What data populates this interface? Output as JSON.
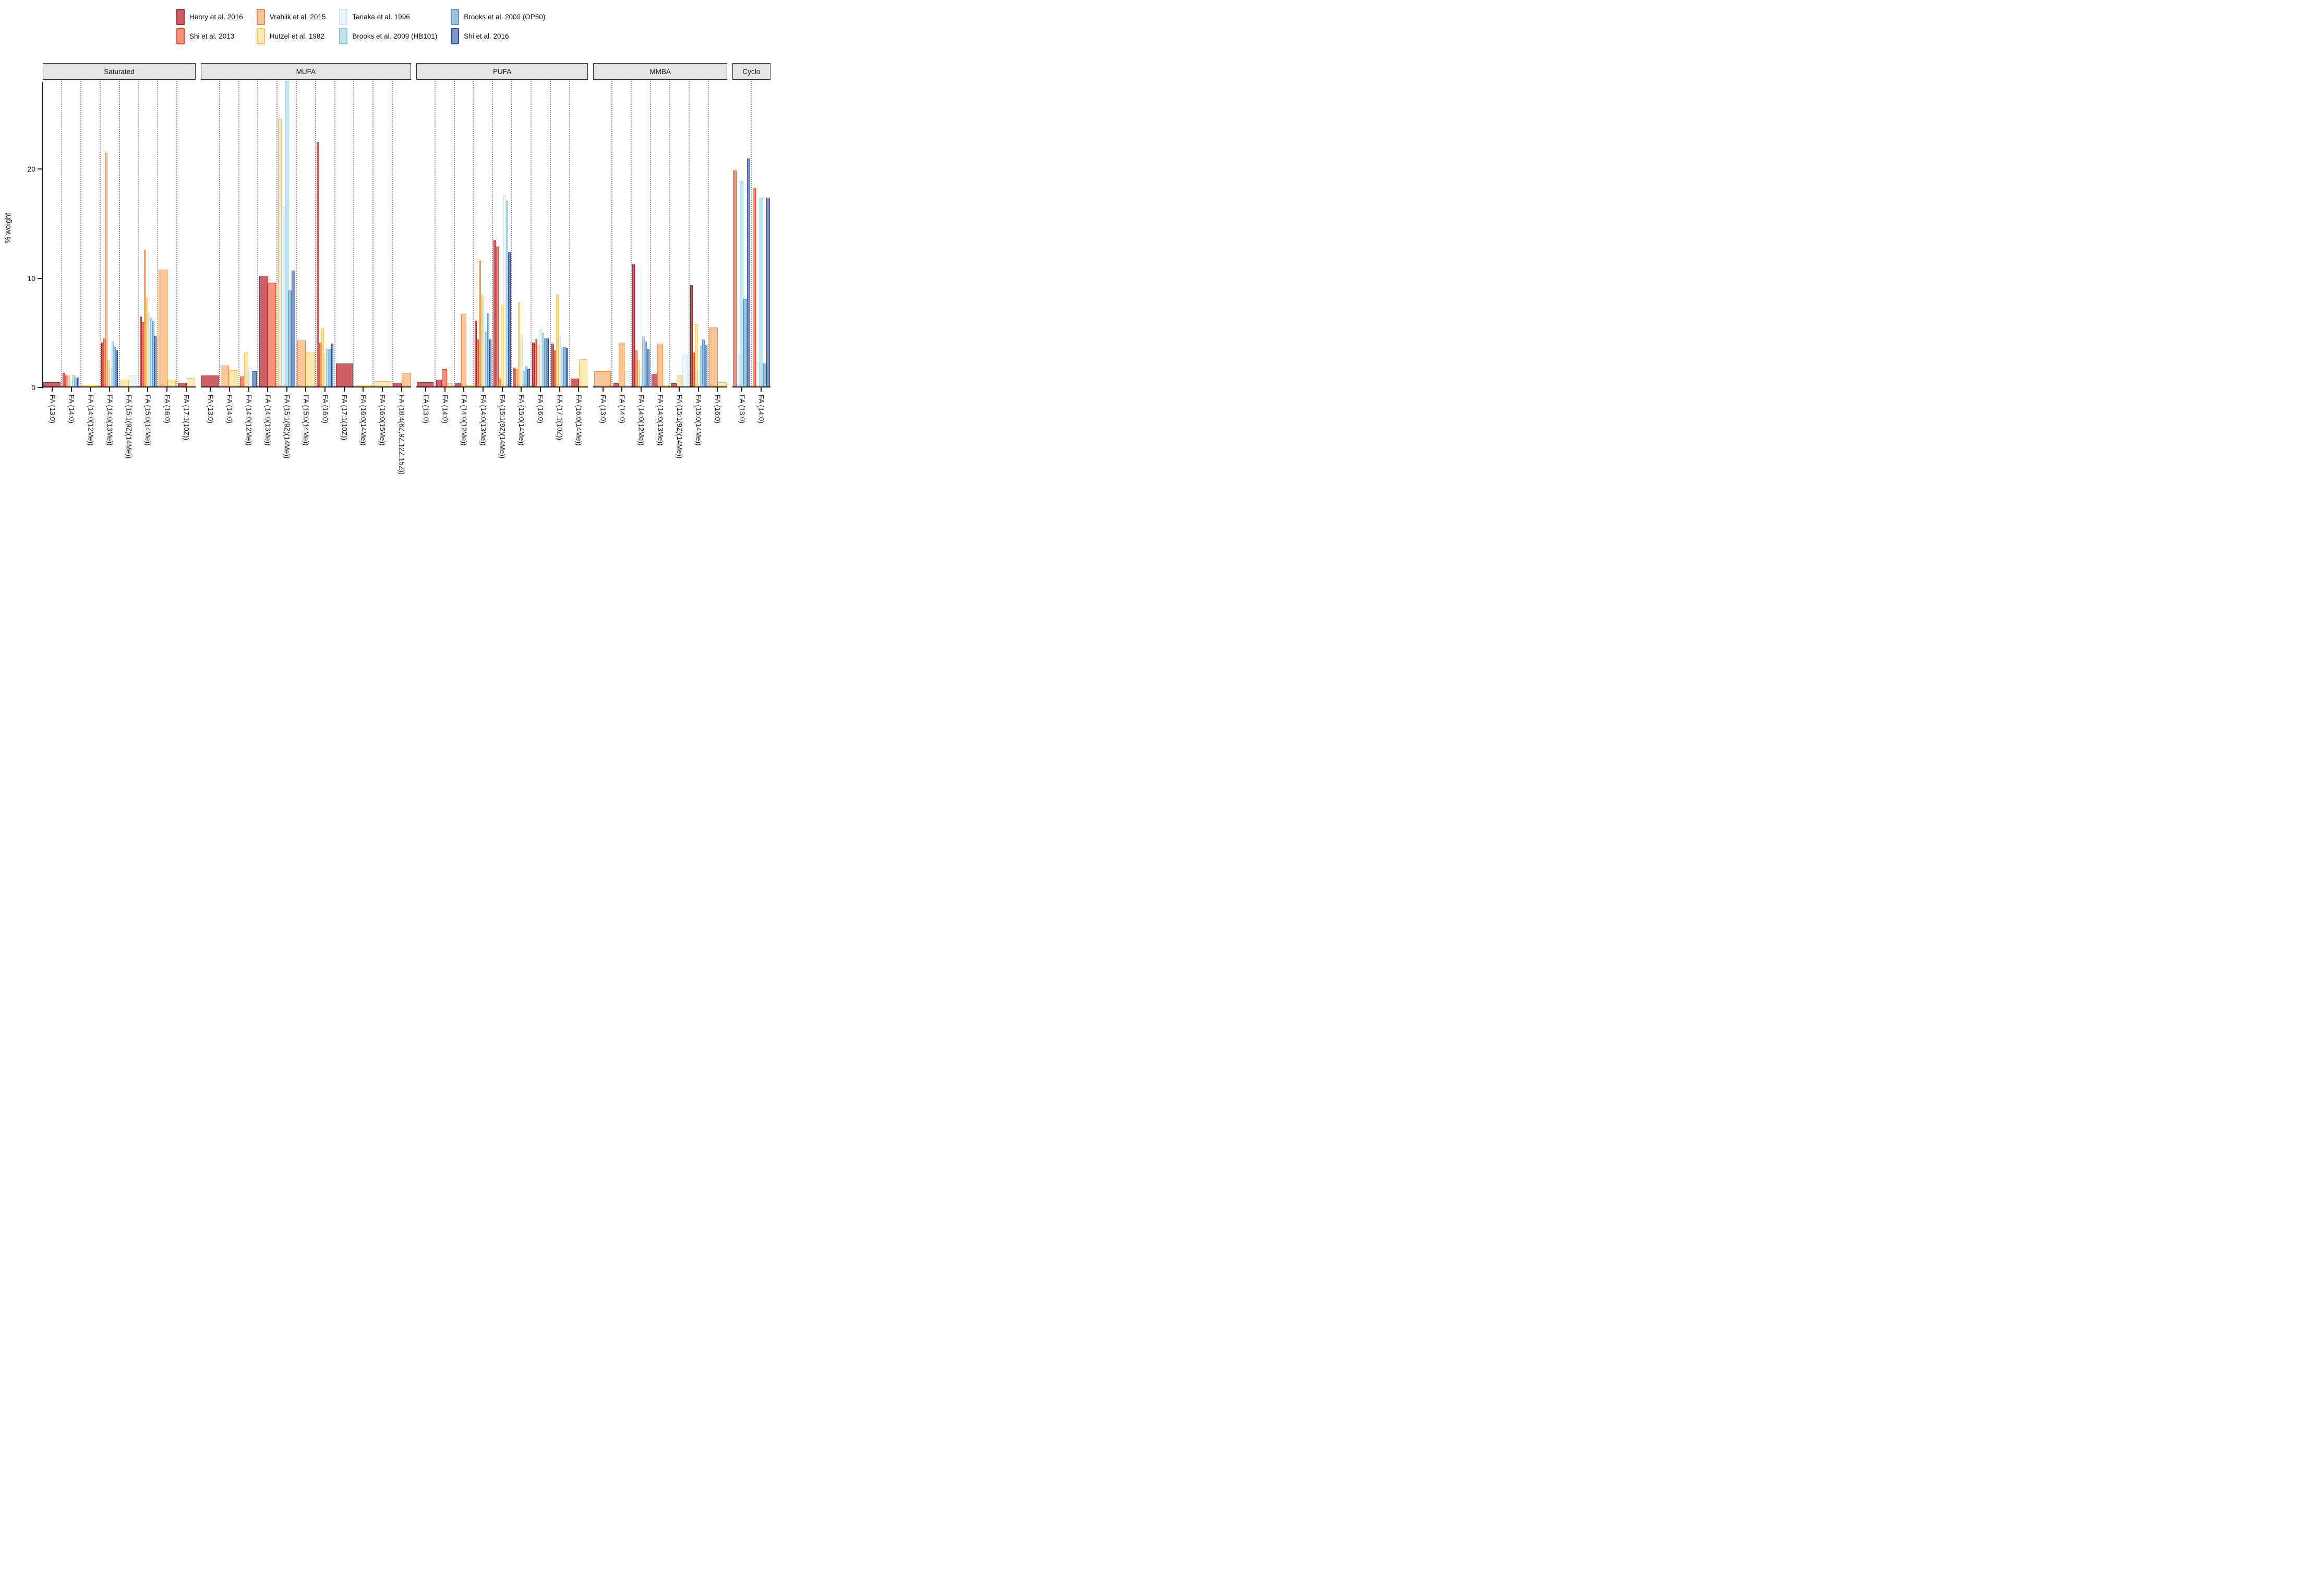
{
  "ylabel": "% weight",
  "legend": [
    {
      "name": "Henry et al. 2016",
      "fill": "#CD5F66",
      "stroke": "#B52633",
      "col": 0
    },
    {
      "name": "Shi et al. 2013",
      "fill": "#F4917B",
      "stroke": "#E94E2C",
      "col": 0
    },
    {
      "name": "Vrablik et al. 2015",
      "fill": "#FAC598",
      "stroke": "#F28A3E",
      "col": 1
    },
    {
      "name": "Hutzel et al. 1982",
      "fill": "#FCE8B0",
      "stroke": "#F5C44E",
      "col": 1
    },
    {
      "name": "Tanaka et al. 1996",
      "fill": "#EAF5FB",
      "stroke": "#CCE6F2",
      "col": 2
    },
    {
      "name": "Brooks et al. 2009 (HB101)",
      "fill": "#C3E0EF",
      "stroke": "#8FC4DC",
      "col": 2
    },
    {
      "name": "Brooks et al. 2009 (OP50)",
      "fill": "#9CC4DE",
      "stroke": "#5B9BC8",
      "col": 3
    },
    {
      "name": "Shi et al. 2016",
      "fill": "#8093C6",
      "stroke": "#2C4C9C",
      "col": 3
    }
  ],
  "chart_data": {
    "type": "bar",
    "title": "",
    "xlabel": "",
    "ylabel": "% weight",
    "ylim": [
      0,
      28
    ],
    "yticks": [
      0,
      10,
      20
    ],
    "grid": "vertical dotted lines at category boundaries",
    "legend_position": "top",
    "series_order": [
      "Henry et al. 2016",
      "Shi et al. 2013",
      "Vrablik et al. 2015",
      "Hutzel et al. 1982",
      "Tanaka et al. 1996",
      "Brooks et al. 2009 (HB101)",
      "Brooks et al. 2009 (OP50)",
      "Shi et al. 2016"
    ],
    "facets": [
      {
        "label": "Saturated",
        "categories": [
          {
            "label": "FA (13:0)",
            "values": {
              "Henry et al. 2016": 0.4
            }
          },
          {
            "label": "FA (14:0)",
            "values": {
              "Henry et al. 2016": 1.2,
              "Shi et al. 2013": 1.0,
              "Hutzel et al. 1982": 1.0,
              "Tanaka et al. 1996": 0.55,
              "Brooks et al. 2009 (HB101)": 1.05,
              "Brooks et al. 2009 (OP50)": 0.8,
              "Shi et al. 2016": 0.8
            }
          },
          {
            "label": "FA (14:0(12Me))",
            "values": {
              "Hutzel et al. 1982": 0.15
            }
          },
          {
            "label": "FA (14:0(13Me))",
            "values": {
              "Henry et al. 2016": 4.0,
              "Shi et al. 2013": 4.4,
              "Vrablik et al. 2015": 21.4,
              "Hutzel et al. 1982": 2.4,
              "Tanaka et al. 1996": 1.7,
              "Brooks et al. 2009 (HB101)": 4.1,
              "Brooks et al. 2009 (OP50)": 3.6,
              "Shi et al. 2016": 3.3
            }
          },
          {
            "label": "FA (15:1(9Z)(14Me))",
            "values": {
              "Hutzel et al. 1982": 0.6,
              "Tanaka et al. 1996": 1.05
            }
          },
          {
            "label": "FA (15:0(14Me))",
            "values": {
              "Henry et al. 2016": 6.4,
              "Shi et al. 2013": 5.9,
              "Vrablik et al. 2015": 12.5,
              "Hutzel et al. 1982": 8.1,
              "Tanaka et al. 1996": 6.9,
              "Brooks et al. 2009 (HB101)": 6.3,
              "Brooks et al. 2009 (OP50)": 6.0,
              "Shi et al. 2016": 4.6
            }
          },
          {
            "label": "FA (16:0)",
            "values": {
              "Vrablik et al. 2015": 10.7,
              "Hutzel et al. 1982": 0.6
            }
          },
          {
            "label": "FA (17:1(10Z))",
            "values": {
              "Henry et al. 2016": 0.35,
              "Hutzel et al. 1982": 0.75
            }
          }
        ]
      },
      {
        "label": "MUFA",
        "categories": [
          {
            "label": "FA (13:0)",
            "values": {
              "Henry et al. 2016": 1.0
            }
          },
          {
            "label": "FA (14:0)",
            "values": {
              "Vrablik et al. 2015": 1.9,
              "Hutzel et al. 1982": 1.5
            }
          },
          {
            "label": "FA (14:0(12Me))",
            "values": {
              "Shi et al. 2013": 0.9,
              "Hutzel et al. 1982": 3.1,
              "Tanaka et al. 1996": 1.7,
              "Shi et al. 2016": 1.4
            }
          },
          {
            "label": "FA (14:0(13Me))",
            "values": {
              "Henry et al. 2016": 10.1,
              "Shi et al. 2013": 9.5
            }
          },
          {
            "label": "FA (15:1(9Z)(14Me))",
            "values": {
              "Hutzel et al. 1982": 24.5,
              "Tanaka et al. 1996": 16.5,
              "Brooks et al. 2009 (HB101)": 28.6,
              "Brooks et al. 2009 (OP50)": 8.8,
              "Shi et al. 2016": 10.6
            }
          },
          {
            "label": "FA (15:0(14Me))",
            "values": {
              "Vrablik et al. 2015": 4.2,
              "Hutzel et al. 1982": 3.1
            }
          },
          {
            "label": "FA (16:0)",
            "values": {
              "Henry et al. 2016": 22.4,
              "Shi et al. 2013": 4.0,
              "Hutzel et al. 1982": 5.3,
              "Tanaka et al. 1996": 3.0,
              "Brooks et al. 2009 (HB101)": 3.4,
              "Brooks et al. 2009 (OP50)": 3.4,
              "Shi et al. 2016": 3.9
            }
          },
          {
            "label": "FA (17:1(10Z))",
            "values": {
              "Henry et al. 2016": 2.1
            }
          },
          {
            "label": "FA (16:0(14Me))",
            "values": {
              "Hutzel et al. 1982": 0.15
            }
          },
          {
            "label": "FA (16:0(15Me))",
            "values": {
              "Hutzel et al. 1982": 0.5
            }
          },
          {
            "label": "FA (18:4(6Z,9Z,12Z,15Z))",
            "values": {
              "Henry et al. 2016": 0.35,
              "Vrablik et al. 2015": 1.25
            }
          }
        ]
      },
      {
        "label": "PUFA",
        "categories": [
          {
            "label": "FA (13:0)",
            "values": {
              "Henry et al. 2016": 0.4
            }
          },
          {
            "label": "FA (14:0)",
            "values": {
              "Henry et al. 2016": 0.6,
              "Shi et al. 2013": 1.6,
              "Hutzel et al. 1982": 0.3
            }
          },
          {
            "label": "FA (14:0(12Me))",
            "values": {
              "Henry et al. 2016": 0.35,
              "Vrablik et al. 2015": 6.6,
              "Hutzel et al. 1982": 0.15
            }
          },
          {
            "label": "FA (14:0(13Me))",
            "values": {
              "Henry et al. 2016": 6.0,
              "Shi et al. 2013": 4.3,
              "Vrablik et al. 2015": 11.5,
              "Hutzel et al. 1982": 8.4,
              "Tanaka et al. 1996": 8.2,
              "Brooks et al. 2009 (HB101)": 5.0,
              "Brooks et al. 2009 (OP50)": 6.7,
              "Shi et al. 2016": 4.3
            }
          },
          {
            "label": "FA (15:1(9Z)(14Me))",
            "values": {
              "Henry et al. 2016": 13.4,
              "Shi et al. 2013": 12.8,
              "Vrablik et al. 2015": 0.7,
              "Hutzel et al. 1982": 7.5,
              "Tanaka et al. 1996": 17.6,
              "Brooks et al. 2009 (HB101)": 17.0,
              "Shi et al. 2016": 12.3
            }
          },
          {
            "label": "FA (15:0(14Me))",
            "values": {
              "Henry et al. 2016": 1.7,
              "Vrablik et al. 2015": 1.6,
              "Hutzel et al. 1982": 7.7,
              "Tanaka et al. 1996": 4.7,
              "Brooks et al. 2009 (HB101)": 1.4,
              "Brooks et al. 2009 (OP50)": 1.8,
              "Shi et al. 2016": 1.6
            }
          },
          {
            "label": "FA (16:0)",
            "values": {
              "Henry et al. 2016": 4.0,
              "Shi et al. 2013": 4.3,
              "Hutzel et al. 1982": 3.8,
              "Tanaka et al. 1996": 5.3,
              "Brooks et al. 2009 (HB101)": 4.9,
              "Brooks et al. 2009 (OP50)": 4.4,
              "Shi et al. 2016": 4.4
            }
          },
          {
            "label": "FA (17:1(10Z))",
            "values": {
              "Henry et al. 2016": 3.9,
              "Shi et al. 2013": 3.3,
              "Hutzel et al. 1982": 8.4,
              "Tanaka et al. 1996": 4.7,
              "Brooks et al. 2009 (HB101)": 3.5,
              "Brooks et al. 2009 (OP50)": 3.6,
              "Shi et al. 2016": 3.5
            }
          },
          {
            "label": "FA (16:0(14Me))",
            "values": {
              "Henry et al. 2016": 0.7,
              "Hutzel et al. 1982": 2.5
            }
          }
        ]
      },
      {
        "label": "MMBA",
        "categories": [
          {
            "label": "FA (13:0)",
            "values": {
              "Vrablik et al. 2015": 1.4
            }
          },
          {
            "label": "FA (14:0)",
            "values": {
              "Henry et al. 2016": 0.3,
              "Vrablik et al. 2015": 4.0,
              "Tanaka et al. 1996": 1.4
            }
          },
          {
            "label": "FA (14:0(12Me))",
            "values": {
              "Henry et al. 2016": 11.2,
              "Shi et al. 2013": 3.3,
              "Hutzel et al. 1982": 2.4,
              "Tanaka et al. 1996": 1.6,
              "Brooks et al. 2009 (HB101)": 4.6,
              "Brooks et al. 2009 (OP50)": 4.1,
              "Shi et al. 2016": 3.4
            }
          },
          {
            "label": "FA (14:0(13Me))",
            "values": {
              "Henry et al. 2016": 1.1,
              "Vrablik et al. 2015": 3.9,
              "Hutzel et al. 1982": 0.15
            }
          },
          {
            "label": "FA (15:1(9Z)(14Me))",
            "values": {
              "Henry et al. 2016": 0.3,
              "Hutzel et al. 1982": 1.0,
              "Tanaka et al. 1996": 2.9
            }
          },
          {
            "label": "FA (15:0(14Me))",
            "values": {
              "Henry et al. 2016": 9.3,
              "Shi et al. 2013": 3.1,
              "Hutzel et al. 1982": 5.7,
              "Tanaka et al. 1996": 1.5,
              "Brooks et al. 2009 (HB101)": 3.7,
              "Brooks et al. 2009 (OP50)": 4.3,
              "Shi et al. 2016": 3.8
            }
          },
          {
            "label": "FA (16:0)",
            "values": {
              "Vrablik et al. 2015": 5.4,
              "Hutzel et al. 1982": 0.4
            }
          }
        ]
      },
      {
        "label": "Cyclo",
        "categories": [
          {
            "label": "FA (13:0)",
            "values": {
              "Shi et al. 2013": 19.8,
              "Tanaka et al. 1996": 2.9,
              "Brooks et al. 2009 (HB101)": 18.8,
              "Brooks et al. 2009 (OP50)": 8.0,
              "Shi et al. 2016": 20.9
            }
          },
          {
            "label": "FA (14:0)",
            "values": {
              "Shi et al. 2013": 18.2,
              "Tanaka et al. 1996": 2.2,
              "Brooks et al. 2009 (HB101)": 17.3,
              "Brooks et al. 2009 (OP50)": 2.1,
              "Shi et al. 2016": 17.3
            }
          }
        ]
      }
    ],
    "annotations": [
      "Brooks et al. 2009 (HB101) bar for FA (15:1(9Z)(14Me)) in the MUFA facet is clipped at the top of the panel (exceeds the visible axis range of ~28 % weight)"
    ]
  }
}
